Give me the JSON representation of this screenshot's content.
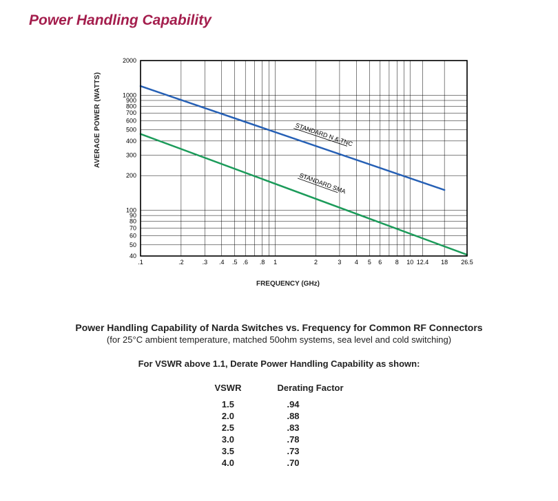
{
  "title": "Power Handling Capability",
  "chart": {
    "type": "line-loglog",
    "y_axis_label": "AVERAGE POWER (WATTS)",
    "x_axis_label": "FREQUENCY (GHz)",
    "plot_bg": "#ffffff",
    "axis_color": "#000000",
    "grid_color": "#000000",
    "tick_font_size": 9,
    "label_font_size": 10,
    "x_log_min": 0.1,
    "x_log_max": 26.5,
    "y_log_min": 40,
    "y_log_max": 2000,
    "x_ticks": [
      {
        "v": 0.1,
        "label": ".1"
      },
      {
        "v": 0.2,
        "label": ".2"
      },
      {
        "v": 0.3,
        "label": ".3"
      },
      {
        "v": 0.4,
        "label": ".4"
      },
      {
        "v": 0.5,
        "label": ".5"
      },
      {
        "v": 0.6,
        "label": ".6"
      },
      {
        "v": 0.8,
        "label": ".8"
      },
      {
        "v": 1,
        "label": "1"
      },
      {
        "v": 2,
        "label": "2"
      },
      {
        "v": 3,
        "label": "3"
      },
      {
        "v": 4,
        "label": "4"
      },
      {
        "v": 5,
        "label": "5"
      },
      {
        "v": 6,
        "label": "6"
      },
      {
        "v": 8,
        "label": "8"
      },
      {
        "v": 10,
        "label": "10"
      },
      {
        "v": 12.4,
        "label": "12.4"
      },
      {
        "v": 18,
        "label": "18"
      },
      {
        "v": 26.5,
        "label": "26.5"
      }
    ],
    "y_ticks": [
      {
        "v": 40,
        "label": "40"
      },
      {
        "v": 50,
        "label": "50"
      },
      {
        "v": 60,
        "label": "60"
      },
      {
        "v": 70,
        "label": "70"
      },
      {
        "v": 80,
        "label": "80"
      },
      {
        "v": 90,
        "label": "90"
      },
      {
        "v": 100,
        "label": "100"
      },
      {
        "v": 200,
        "label": "200"
      },
      {
        "v": 300,
        "label": "300"
      },
      {
        "v": 400,
        "label": "400"
      },
      {
        "v": 500,
        "label": "500"
      },
      {
        "v": 600,
        "label": "600"
      },
      {
        "v": 700,
        "label": "700"
      },
      {
        "v": 800,
        "label": "800"
      },
      {
        "v": 900,
        "label": "900"
      },
      {
        "v": 1000,
        "label": "1000"
      },
      {
        "v": 2000,
        "label": "2000"
      }
    ],
    "x_grid_extra": [
      0.7,
      0.9,
      7,
      9
    ],
    "series": [
      {
        "name_label": "STANDARD N & TNC",
        "label_xy": [
          1.4,
          530
        ],
        "color": "#2660b5",
        "width": 2.5,
        "points": [
          {
            "x": 0.1,
            "y": 1200
          },
          {
            "x": 18,
            "y": 150
          }
        ]
      },
      {
        "name_label": "STANDARD SMA",
        "label_xy": [
          1.5,
          195
        ],
        "color": "#1c9b5a",
        "width": 2.5,
        "points": [
          {
            "x": 0.1,
            "y": 460
          },
          {
            "x": 26.5,
            "y": 41
          }
        ]
      }
    ]
  },
  "caption": {
    "line1": "Power Handling Capability of Narda Switches vs. Frequency for Common RF Connectors",
    "line2": "(for 25°C ambient temperature, matched 50ohm systems, sea level and cold switching)",
    "line3": "For VSWR above 1.1, Derate Power Handling Capability as shown:"
  },
  "derating_table": {
    "columns": [
      "VSWR",
      "Derating Factor"
    ],
    "rows": [
      [
        "1.5",
        ".94"
      ],
      [
        "2.0",
        ".88"
      ],
      [
        "2.5",
        ".83"
      ],
      [
        "3.0",
        ".78"
      ],
      [
        "3.5",
        ".73"
      ],
      [
        "4.0",
        ".70"
      ]
    ]
  }
}
